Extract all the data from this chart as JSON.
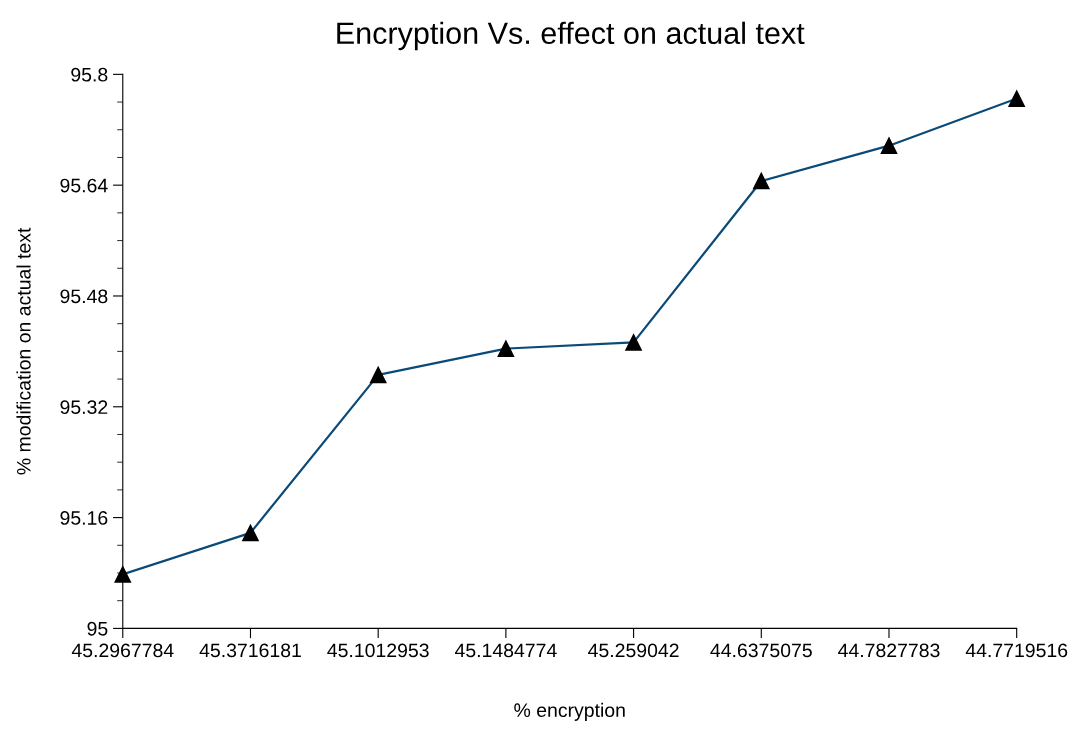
{
  "chart_data": {
    "type": "line",
    "title": "Encryption Vs. effect on actual text",
    "xlabel": "% encryption",
    "ylabel": "% modification on actual text",
    "categories": [
      "45.2967784",
      "45.3716181",
      "45.1012953",
      "45.1484774",
      "45.259042",
      "44.6375075",
      "44.7827783",
      "44.7719516"
    ],
    "series": [
      {
        "color": "#0a4a78",
        "values": [
          95.078,
          95.138,
          95.366,
          95.404,
          95.413,
          95.646,
          95.697,
          95.765
        ]
      }
    ],
    "ylim": [
      95,
      95.8
    ],
    "yticks": [
      95,
      95.16,
      95.32,
      95.48,
      95.64,
      95.8
    ],
    "marker": "triangle",
    "line_style": "solid",
    "grid": false,
    "legend": false
  }
}
